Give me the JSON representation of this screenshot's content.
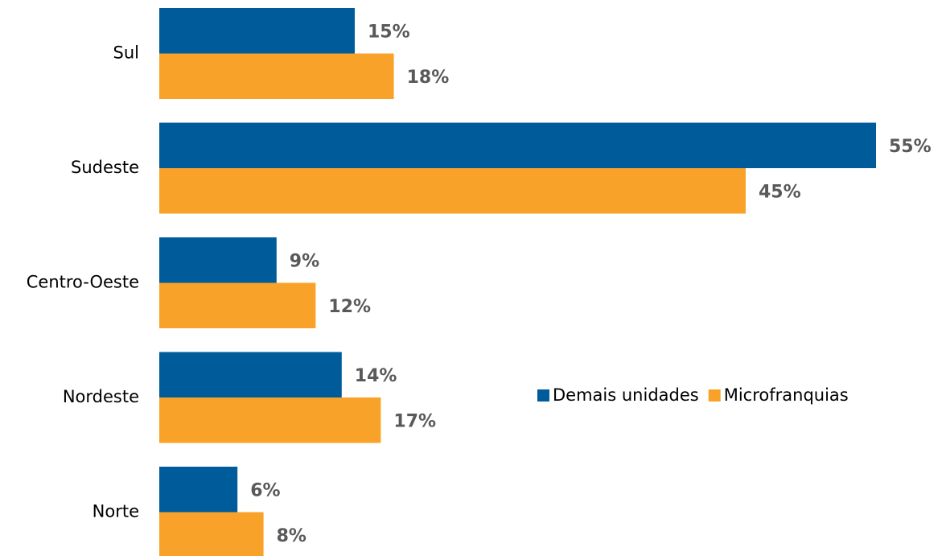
{
  "chart_data": {
    "type": "barh",
    "categories": [
      "Sul",
      "Sudeste",
      "Centro-Oeste",
      "Nordeste",
      "Norte"
    ],
    "series": [
      {
        "name": "Demais unidades",
        "color": "#005b9b",
        "values": [
          15,
          55,
          9,
          14,
          6
        ],
        "value_labels": [
          "15%",
          "55%",
          "9%",
          "14%",
          "6%"
        ]
      },
      {
        "name": "Microfranquias",
        "color": "#f9a229",
        "values": [
          18,
          45,
          12,
          17,
          8
        ],
        "value_labels": [
          "18%",
          "45%",
          "12%",
          "17%",
          "8%"
        ]
      }
    ],
    "legend": "center right"
  }
}
